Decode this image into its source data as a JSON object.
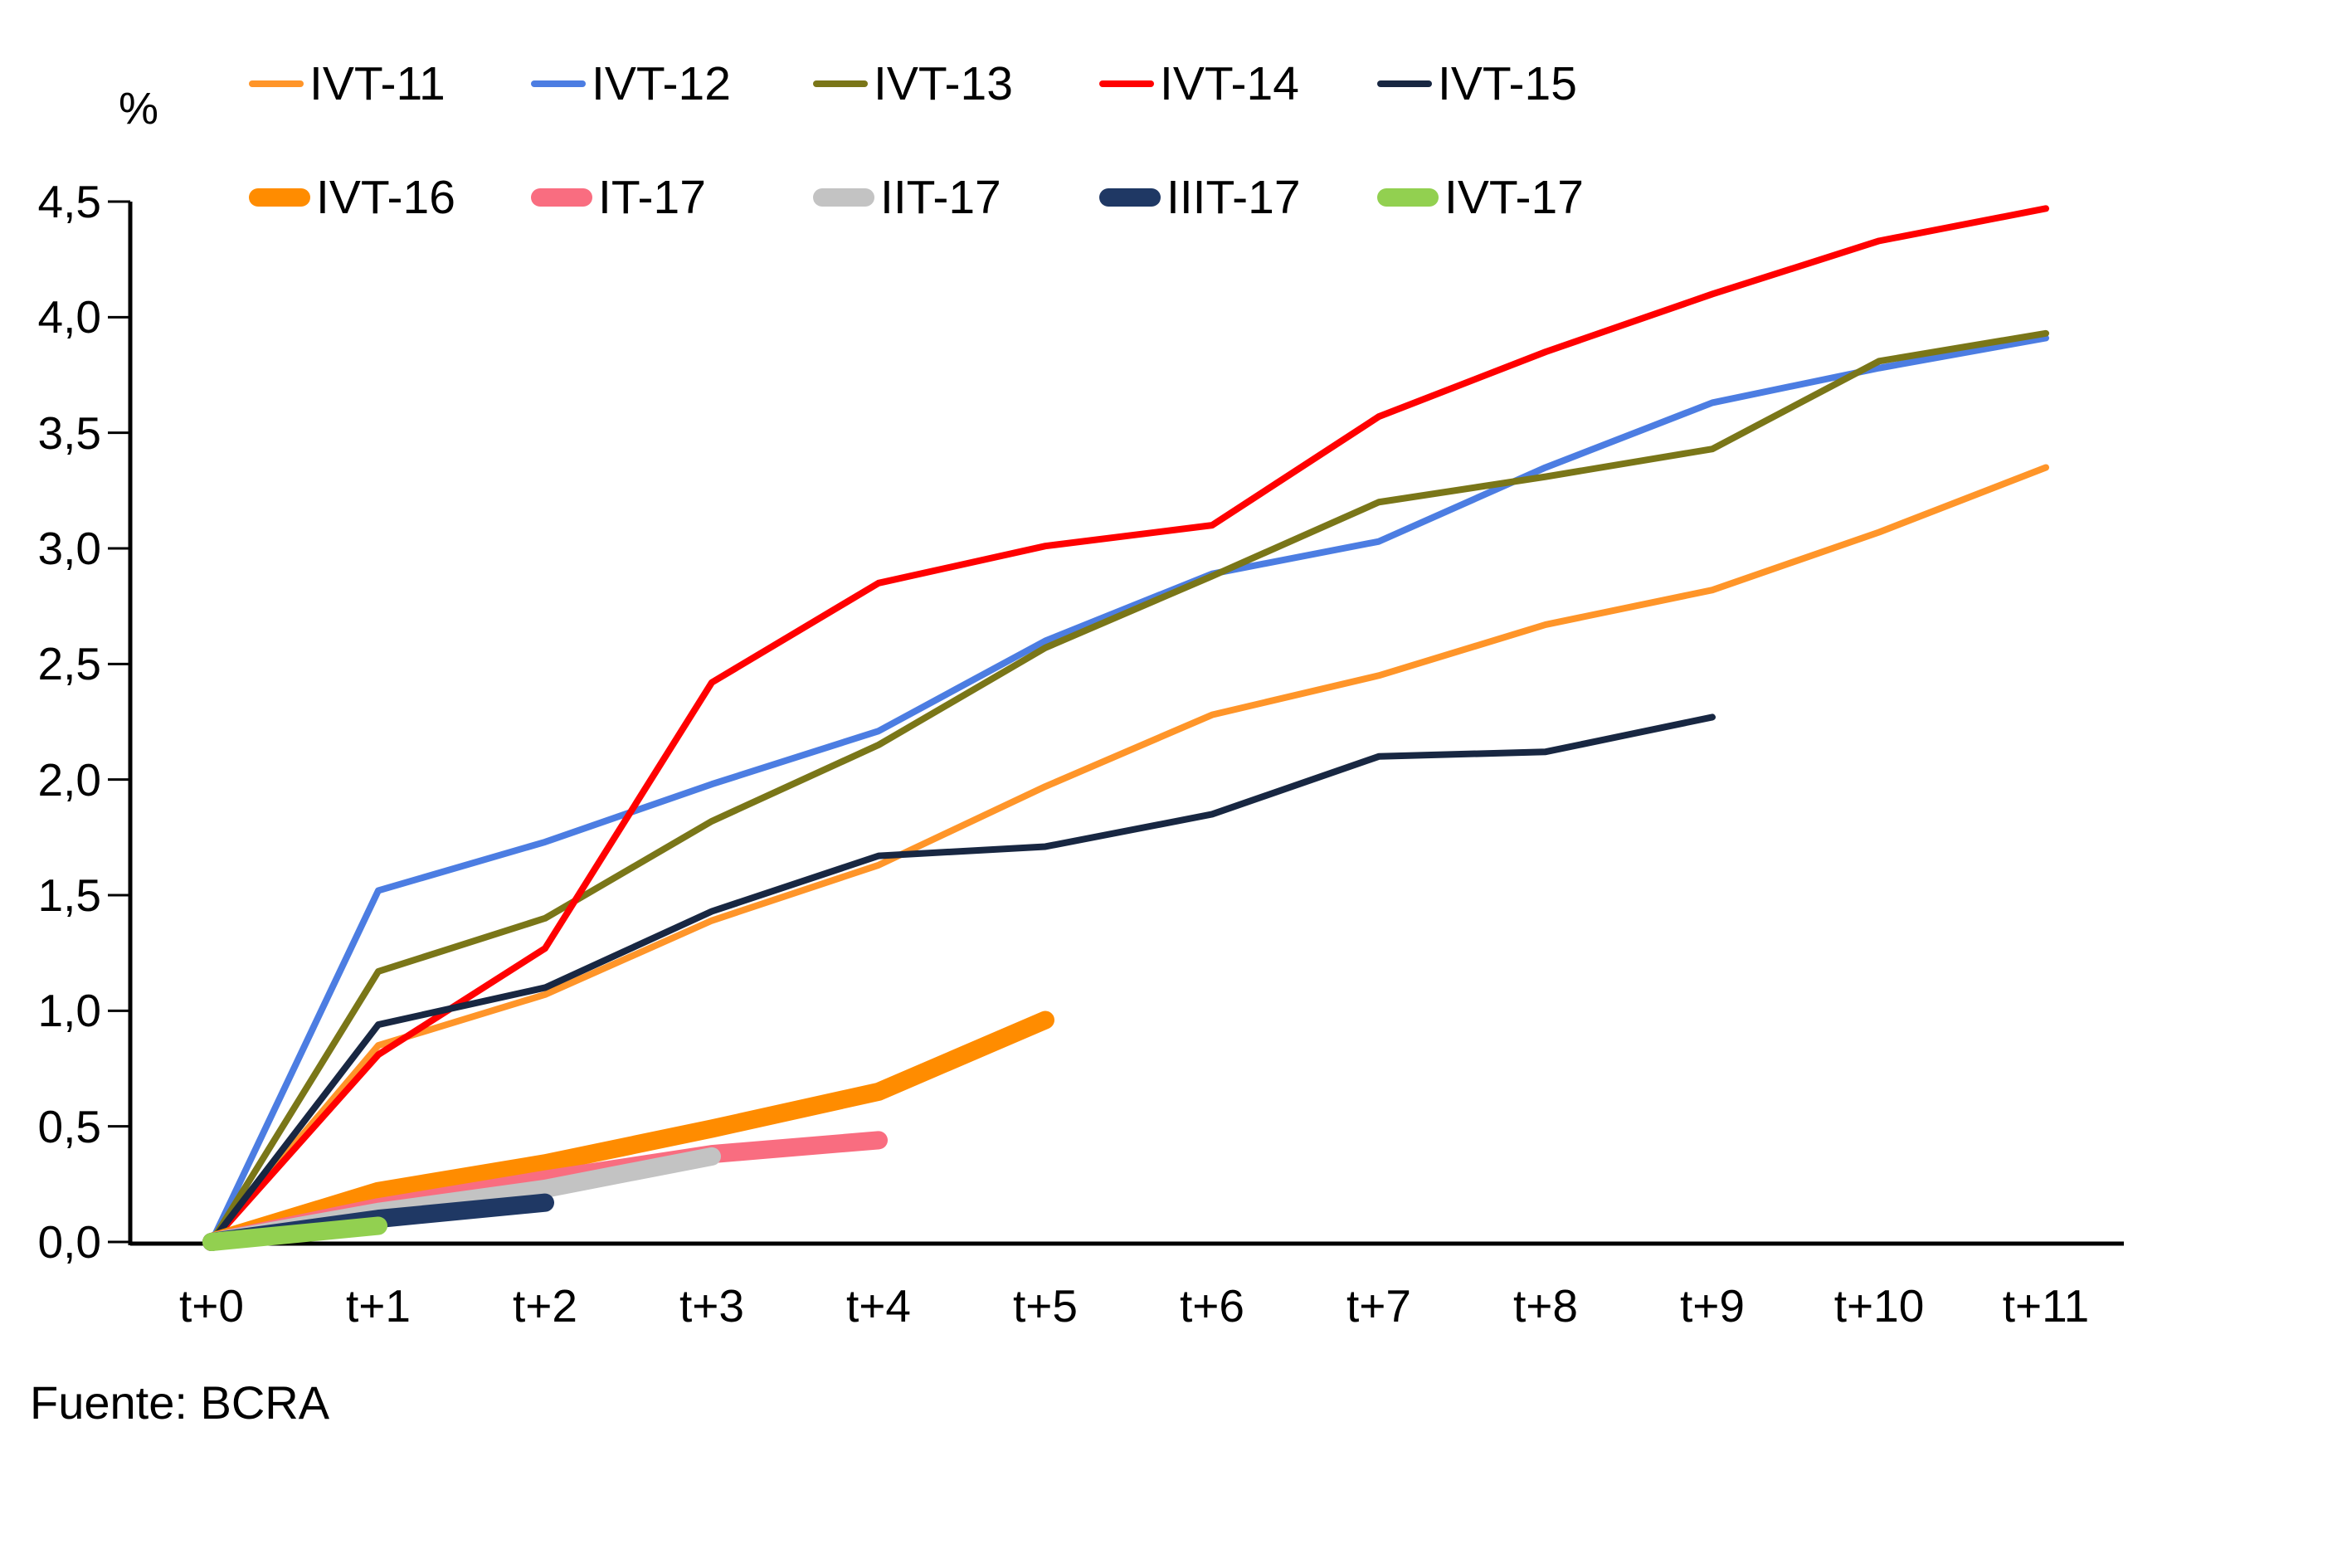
{
  "percent_label": "%",
  "source_note": "Fuente: BCRA",
  "axis_color": "#000000",
  "background_color": "#ffffff",
  "chart_data": {
    "type": "line",
    "title": "",
    "xlabel": "",
    "ylabel": "%",
    "ylim": [
      0,
      4.5
    ],
    "ytick_step": 0.5,
    "ytick_labels": [
      "0,0",
      "0,5",
      "1,0",
      "1,5",
      "2,0",
      "2,5",
      "3,0",
      "3,5",
      "4,0",
      "4,5"
    ],
    "grid": false,
    "legend_position": "top-left, two rows",
    "decimal_separator": ",",
    "categories": [
      "t+0",
      "t+1",
      "t+2",
      "t+3",
      "t+4",
      "t+5",
      "t+6",
      "t+7",
      "t+8",
      "t+9",
      "t+10",
      "t+11"
    ],
    "series": [
      {
        "name": "IVT-11",
        "color": "#FF9529",
        "thickness": "thin",
        "values": [
          0,
          0.85,
          1.07,
          1.39,
          1.63,
          1.97,
          2.28,
          2.45,
          2.67,
          2.82,
          3.07,
          3.35
        ]
      },
      {
        "name": "IVT-12",
        "color": "#4C7DE2",
        "thickness": "thin",
        "values": [
          0,
          1.52,
          1.73,
          1.98,
          2.21,
          2.6,
          2.89,
          3.03,
          3.35,
          3.63,
          3.78,
          3.91
        ]
      },
      {
        "name": "IVT-13",
        "color": "#7A7618",
        "thickness": "thin",
        "values": [
          0,
          1.17,
          1.4,
          1.82,
          2.15,
          2.57,
          2.88,
          3.2,
          3.31,
          3.43,
          3.81,
          3.93
        ]
      },
      {
        "name": "IVT-14",
        "color": "#FF0000",
        "thickness": "thin",
        "values": [
          0,
          0.81,
          1.27,
          2.42,
          2.85,
          3.01,
          3.1,
          3.57,
          3.85,
          4.1,
          4.33,
          4.47
        ]
      },
      {
        "name": "IVT-15",
        "color": "#182742",
        "thickness": "thin",
        "values": [
          0,
          0.94,
          1.1,
          1.43,
          1.67,
          1.71,
          1.85,
          2.1,
          2.12,
          2.27
        ]
      },
      {
        "name": "IVT-16",
        "color": "#FF8C00",
        "thickness": "thick",
        "values": [
          0,
          0.22,
          0.34,
          0.49,
          0.65,
          0.96
        ]
      },
      {
        "name": "IT-17",
        "color": "#F96D80",
        "thickness": "thick",
        "values": [
          0,
          0.15,
          0.27,
          0.38,
          0.44
        ]
      },
      {
        "name": "IIT-17",
        "color": "#C3C3C3",
        "thickness": "thick",
        "values": [
          0,
          0.13,
          0.23,
          0.37
        ]
      },
      {
        "name": "IIIT-17",
        "color": "#1F3864",
        "thickness": "thick",
        "values": [
          0,
          0.1,
          0.17
        ]
      },
      {
        "name": "IVT-17",
        "color": "#92D050",
        "thickness": "thick",
        "values": [
          0,
          0.07
        ]
      }
    ]
  }
}
